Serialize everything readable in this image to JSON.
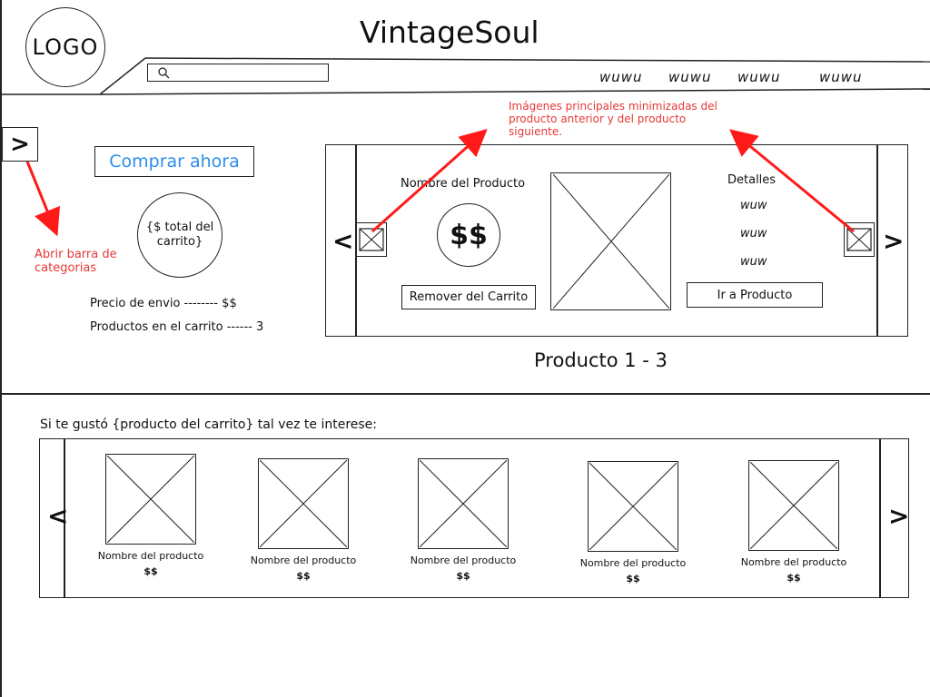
{
  "header": {
    "logo_text": "LOGO",
    "brand": "VintageSoul",
    "nav_items": [
      "wuwu",
      "wuwu",
      "wuwu",
      "wuwu"
    ]
  },
  "sidebar": {
    "toggle_label": ">",
    "annotation": "Abrir barra de\ncategorias"
  },
  "cart_summary": {
    "buy_now_label": "Comprar ahora",
    "total_text": "{$ total del carrito}",
    "shipping_text": "Precio de envio -------- $$",
    "products_count_text": "Productos en el carrito ------ 3"
  },
  "product_carousel": {
    "product_name": "Nombre del Producto",
    "price": "$$",
    "details_title": "Detalles",
    "details": [
      "wuw",
      "wuw",
      "wuw"
    ],
    "remove_label": "Remover del Carrito",
    "go_to_label": "Ir a Producto",
    "counter_text": "Producto 1 - 3",
    "prev_label": "<",
    "next_label": ">",
    "thumb_annotation": "Imágenes principales minimizadas del\nproducto anterior y del producto\nsiguiente."
  },
  "recommendations": {
    "title": "Si te gustó {producto del carrito} tal vez te interese:",
    "prev_label": "<",
    "next_label": ">",
    "items": [
      {
        "name": "Nombre del producto",
        "price": "$$"
      },
      {
        "name": "Nombre del producto",
        "price": "$$"
      },
      {
        "name": "Nombre del producto",
        "price": "$$"
      },
      {
        "name": "Nombre del producto",
        "price": "$$"
      },
      {
        "name": "Nombre del producto",
        "price": "$$"
      }
    ]
  },
  "colors": {
    "accent": "#2b8ee8",
    "annotation": "#e53935"
  }
}
